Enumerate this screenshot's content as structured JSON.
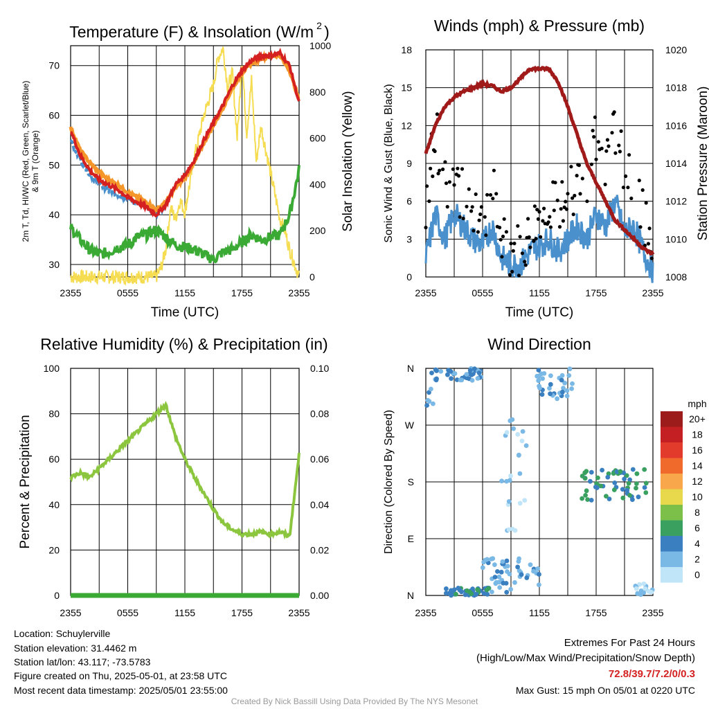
{
  "chart_data": [
    {
      "type": "line",
      "title": "Temperature (F) & Insolation (W/m²)",
      "ylabel": "2m T, Td, HI/WC (Red, Green, Scarlet/Blue) & 9m T (Orange)",
      "ylabel_line1": "2m T, Td, HI/WC (Red, Green, Scarlet/Blue)",
      "ylabel_line2": "& 9m T (Orange)",
      "y2label": "Solar Insolation (Yellow)",
      "xlabel": "Time (UTC)",
      "xticks": [
        "2355",
        "0555",
        "1155",
        "1755",
        "2355"
      ],
      "ylim": [
        27.5,
        74
      ],
      "yticks": [
        30,
        40,
        50,
        60,
        70
      ],
      "y2lim": [
        0,
        1000
      ],
      "y2ticks": [
        0,
        200,
        400,
        600,
        800,
        1000
      ],
      "grid": true,
      "colors": {
        "temp": "#d42020",
        "dewpoint": "#3aaa35",
        "heat_index": "#e8402a",
        "wind_chill": "#4a90cc",
        "temp9m": "#f5962a",
        "insolation": "#f5dc50"
      },
      "series": [
        {
          "key": "temp",
          "x": [
            0,
            1,
            2,
            3,
            4,
            5,
            6,
            7,
            8,
            9,
            10,
            11,
            12,
            13,
            14,
            15,
            16,
            17,
            18,
            19,
            20,
            21,
            22,
            23,
            24
          ],
          "values": [
            57,
            52,
            49,
            47,
            46,
            45,
            43.5,
            42.5,
            41.5,
            40,
            42,
            46,
            48,
            51,
            55,
            58.5,
            62,
            66,
            69,
            71,
            72,
            72,
            72.5,
            70,
            62.5
          ]
        },
        {
          "key": "temp9m",
          "x": [
            0,
            1,
            2,
            3,
            4,
            5,
            6,
            7,
            8,
            9,
            10,
            11,
            12,
            13,
            14,
            15,
            16,
            17,
            18,
            19,
            20,
            21,
            22,
            23,
            24
          ],
          "values": [
            57.5,
            53,
            50.5,
            48.5,
            47,
            46,
            44.5,
            43.5,
            42.5,
            41,
            42.5,
            45.5,
            47.5,
            50.5,
            54.5,
            58,
            61.5,
            65.5,
            68.5,
            70.5,
            71.5,
            72,
            72,
            69,
            63
          ]
        },
        {
          "key": "wind_chill",
          "x": [
            0,
            1,
            2,
            3,
            4,
            5,
            6,
            7,
            8,
            9,
            10
          ],
          "values": [
            55,
            51,
            48,
            46,
            45,
            44,
            43,
            42.5,
            41.5,
            40,
            42
          ]
        },
        {
          "key": "dewpoint",
          "x": [
            0,
            1,
            2,
            3,
            4,
            5,
            6,
            7,
            8,
            9,
            10,
            11,
            12,
            13,
            14,
            15,
            16,
            17,
            18,
            19,
            20,
            21,
            22,
            23,
            24
          ],
          "values": [
            37.5,
            35,
            33,
            32,
            32.5,
            33.5,
            34,
            35.5,
            36,
            37,
            35.5,
            34,
            33.5,
            33,
            32,
            31,
            32.5,
            33,
            34.5,
            36,
            35,
            35.5,
            36,
            40,
            49
          ]
        },
        {
          "key": "insolation",
          "x": [
            0,
            4,
            8,
            9,
            9.5,
            10,
            10.5,
            11,
            11.5,
            12,
            13,
            14,
            15,
            15.5,
            16,
            16.5,
            17,
            17.5,
            18,
            18.5,
            19,
            19.5,
            20,
            21,
            22,
            22.5,
            23,
            23.5,
            24
          ],
          "values": [
            0,
            0,
            0,
            0,
            40,
            120,
            300,
            250,
            330,
            280,
            520,
            700,
            830,
            950,
            990,
            820,
            880,
            600,
            940,
            620,
            850,
            500,
            650,
            450,
            250,
            200,
            120,
            60,
            0
          ]
        }
      ]
    },
    {
      "type": "line",
      "title": "Winds (mph) & Pressure (mb)",
      "ylabel": "Sonic Wind & Gust (Blue, Black)",
      "y2label": "Station Pressure (Maroon)",
      "xlabel": "Time (UTC)",
      "xticks": [
        "2355",
        "0555",
        "1155",
        "1755",
        "2355"
      ],
      "ylim": [
        0,
        18
      ],
      "yticks": [
        0,
        3,
        6,
        9,
        12,
        15,
        18
      ],
      "y2lim": [
        1008,
        1020
      ],
      "y2ticks": [
        1008,
        1010,
        1012,
        1014,
        1016,
        1018,
        1020
      ],
      "grid": true,
      "colors": {
        "wind": "#4a90cc",
        "gust": "#000000",
        "pressure": "#a01a1a"
      },
      "series": [
        {
          "key": "pressure",
          "x": [
            0,
            1,
            2,
            3,
            4,
            5,
            6,
            7,
            8,
            9,
            10,
            11,
            12,
            13,
            14,
            15,
            16,
            17,
            18,
            19,
            20,
            21,
            22,
            23,
            24
          ],
          "values": [
            1014.5,
            1016,
            1017,
            1017.5,
            1017.8,
            1018,
            1018.2,
            1018.1,
            1017.8,
            1018,
            1018.5,
            1019,
            1019,
            1019,
            1018.3,
            1017,
            1015.5,
            1014,
            1013,
            1012,
            1011,
            1010.5,
            1010,
            1009.5,
            1009.2
          ]
        },
        {
          "key": "wind",
          "x": [
            0,
            1,
            2,
            3,
            4,
            5,
            6,
            7,
            8,
            9,
            10,
            11,
            12,
            13,
            14,
            15,
            16,
            17,
            18,
            19,
            20,
            21,
            22,
            23,
            24
          ],
          "values": [
            1.5,
            5,
            3,
            5,
            4,
            3,
            2.5,
            4,
            1.5,
            1,
            1,
            2,
            2.5,
            3,
            2,
            3,
            4,
            3,
            5,
            4,
            6,
            3.5,
            4,
            2,
            0.5
          ]
        },
        {
          "key": "gust",
          "x": [
            0,
            1,
            2,
            3,
            4,
            5,
            6,
            7,
            8,
            9,
            10,
            11,
            12,
            13,
            14,
            15,
            16,
            17,
            18,
            19,
            20,
            21,
            22,
            23,
            24
          ],
          "values": [
            5,
            12,
            7,
            8,
            6,
            5,
            4,
            7,
            3,
            2,
            2,
            3,
            5,
            6,
            5,
            6,
            8,
            7,
            11,
            9,
            12,
            8,
            7,
            5,
            1
          ]
        }
      ]
    },
    {
      "type": "line",
      "title": "Relative Humidity (%) & Precipitation (in)",
      "ylabel": "Percent & Precipitation",
      "xticks": [
        "2355",
        "0555",
        "1155",
        "1755",
        "2355"
      ],
      "ylim": [
        0,
        100
      ],
      "yticks": [
        0,
        20,
        40,
        60,
        80,
        100
      ],
      "y2lim": [
        0,
        0.1
      ],
      "y2ticks": [
        "0.00",
        "0.02",
        "0.04",
        "0.06",
        "0.08",
        "0.10"
      ],
      "grid": true,
      "colors": {
        "rh": "#8cc63f",
        "precip": "#3aaa35"
      },
      "series": [
        {
          "key": "rh",
          "x": [
            0,
            1,
            2,
            3,
            4,
            5,
            6,
            7,
            8,
            9,
            10,
            11,
            12,
            13,
            14,
            15,
            16,
            17,
            18,
            19,
            20,
            21,
            22,
            23,
            24
          ],
          "values": [
            52,
            54,
            52,
            56,
            60,
            64,
            68,
            72,
            76,
            80,
            84,
            70,
            60,
            52,
            45,
            38,
            32,
            29,
            27,
            27,
            28,
            27,
            28,
            26,
            62
          ]
        },
        {
          "key": "precip",
          "x": [
            0,
            24
          ],
          "values": [
            0,
            0
          ]
        }
      ]
    },
    {
      "type": "scatter",
      "title": "Wind Direction",
      "ylabel": "Direction (Colored By Speed)",
      "xticks": [
        "2355",
        "0555",
        "1155",
        "1755",
        "2355"
      ],
      "yticks": [
        "N",
        "E",
        "S",
        "W",
        "N"
      ],
      "ylim": [
        0,
        360
      ],
      "grid": true,
      "legend_title": "mph",
      "legend_labels": [
        "20+",
        "18",
        "16",
        "14",
        "12",
        "10",
        "8",
        "6",
        "4",
        "2",
        "0"
      ],
      "legend_colors": [
        "#9c1c1c",
        "#c42024",
        "#e23a2b",
        "#f06a2c",
        "#f8a84a",
        "#e8d84c",
        "#7cc04a",
        "#3aa060",
        "#3a7fc0",
        "#7ab8e6",
        "#c0e4f8"
      ],
      "clusters": [
        {
          "x0": 0,
          "x1": 1,
          "d0": 300,
          "d1": 360,
          "speeds": [
            2,
            3
          ]
        },
        {
          "x0": 1,
          "x1": 6,
          "d0": 340,
          "d1": 360,
          "speeds": [
            2,
            3,
            4
          ]
        },
        {
          "x0": 11.5,
          "x1": 15.5,
          "d0": 310,
          "d1": 360,
          "speeds": [
            1,
            2,
            3
          ]
        },
        {
          "x0": 16.5,
          "x1": 23.5,
          "d0": 150,
          "d1": 200,
          "speeds": [
            3,
            4,
            5,
            6
          ]
        },
        {
          "x0": 2,
          "x1": 7,
          "d0": 0,
          "d1": 12,
          "speeds": [
            3,
            4,
            6
          ]
        },
        {
          "x0": 6,
          "x1": 12,
          "d0": 0,
          "d1": 60,
          "speeds": [
            1,
            2,
            3
          ]
        },
        {
          "x0": 8,
          "x1": 11,
          "d0": 100,
          "d1": 280,
          "speeds": [
            0,
            1
          ]
        },
        {
          "x0": 22,
          "x1": 24,
          "d0": 0,
          "d1": 20,
          "speeds": [
            0,
            1,
            2
          ]
        }
      ]
    }
  ],
  "info": {
    "location": "Location: Schuylerville",
    "elevation": "Station elevation: 31.4462 m",
    "latlon": "Station lat/lon: 43.117; -73.5783",
    "created": "Figure created on Thu, 2025-05-01, at 23:58 UTC",
    "recent": "Most recent data timestamp: 2025/05/01 23:55:00"
  },
  "extremes": {
    "title": "Extremes For Past 24 Hours",
    "subtitle": "(High/Low/Max Wind/Precipitation/Snow Depth)",
    "values": "72.8/39.7/7.2/0/0.3",
    "gust": "Max Gust: 15 mph On 05/01 at 0220 UTC"
  },
  "credit": "Created By Nick Bassill Using Data Provided By The NYS Mesonet"
}
